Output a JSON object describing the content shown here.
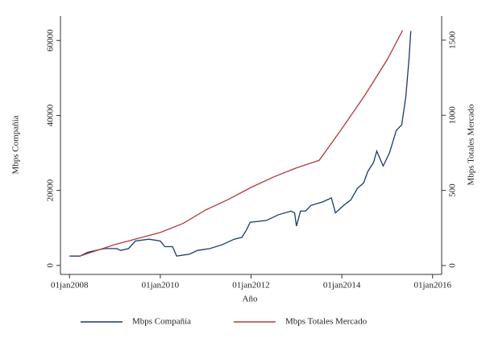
{
  "chart_data": {
    "type": "line",
    "xlabel": "Año",
    "ylabel": "Mbps Compañía",
    "y2label": "Mbps Totales Mercado",
    "xlim": [
      2007.8,
      2016.2
    ],
    "xticks": [
      {
        "value": 2008,
        "label": "01jan2008"
      },
      {
        "value": 2010,
        "label": "01jan2010"
      },
      {
        "value": 2012,
        "label": "01jan2012"
      },
      {
        "value": 2014,
        "label": "01jan2014"
      },
      {
        "value": 2016,
        "label": "01jan2016"
      }
    ],
    "ylim": [
      -2400,
      66500
    ],
    "yticks": [
      0,
      20000,
      40000,
      60000
    ],
    "y2lim": [
      -59,
      1660
    ],
    "y2ticks": [
      0,
      500,
      1000,
      1500
    ],
    "legend": "bottom",
    "series": [
      {
        "name": "Mbps Compañía",
        "color": "#1a3a6b",
        "x": [
          2008.0,
          2008.23,
          2008.4,
          2008.77,
          2009.04,
          2009.13,
          2009.3,
          2009.45,
          2009.75,
          2010.0,
          2010.1,
          2010.27,
          2010.36,
          2010.64,
          2010.82,
          2011.09,
          2011.36,
          2011.63,
          2011.8,
          2011.9,
          2011.98,
          2012.34,
          2012.6,
          2012.88,
          2012.96,
          2013.0,
          2013.09,
          2013.2,
          2013.32,
          2013.59,
          2013.77,
          2013.86,
          2014.04,
          2014.2,
          2014.34,
          2014.48,
          2014.57,
          2014.7,
          2014.77,
          2014.91,
          2015.05,
          2015.2,
          2015.32,
          2015.41,
          2015.48,
          2015.52
        ],
        "values": [
          2500,
          2500,
          3500,
          4500,
          4500,
          4000,
          4500,
          6500,
          7000,
          6500,
          5000,
          5000,
          2500,
          3000,
          4000,
          4500,
          5500,
          7000,
          7500,
          9500,
          11500,
          12000,
          13500,
          14500,
          14000,
          10500,
          14500,
          14500,
          16000,
          17000,
          18000,
          14000,
          16000,
          17500,
          20500,
          22000,
          25000,
          27500,
          30500,
          26500,
          30000,
          36000,
          37500,
          45000,
          55000,
          62500
        ]
      },
      {
        "name": "Mbps Totales Mercado",
        "color": "#b23a3a",
        "axis": "y2",
        "x": [
          2008.2,
          2008.5,
          2009.0,
          2009.5,
          2010.0,
          2010.5,
          2011.0,
          2011.5,
          2012.0,
          2012.5,
          2013.0,
          2013.5,
          2014.0,
          2014.5,
          2015.0,
          2015.34
        ],
        "values": [
          60,
          90,
          140,
          180,
          220,
          280,
          370,
          440,
          520,
          590,
          650,
          700,
          910,
          1130,
          1370,
          1565
        ]
      }
    ]
  }
}
